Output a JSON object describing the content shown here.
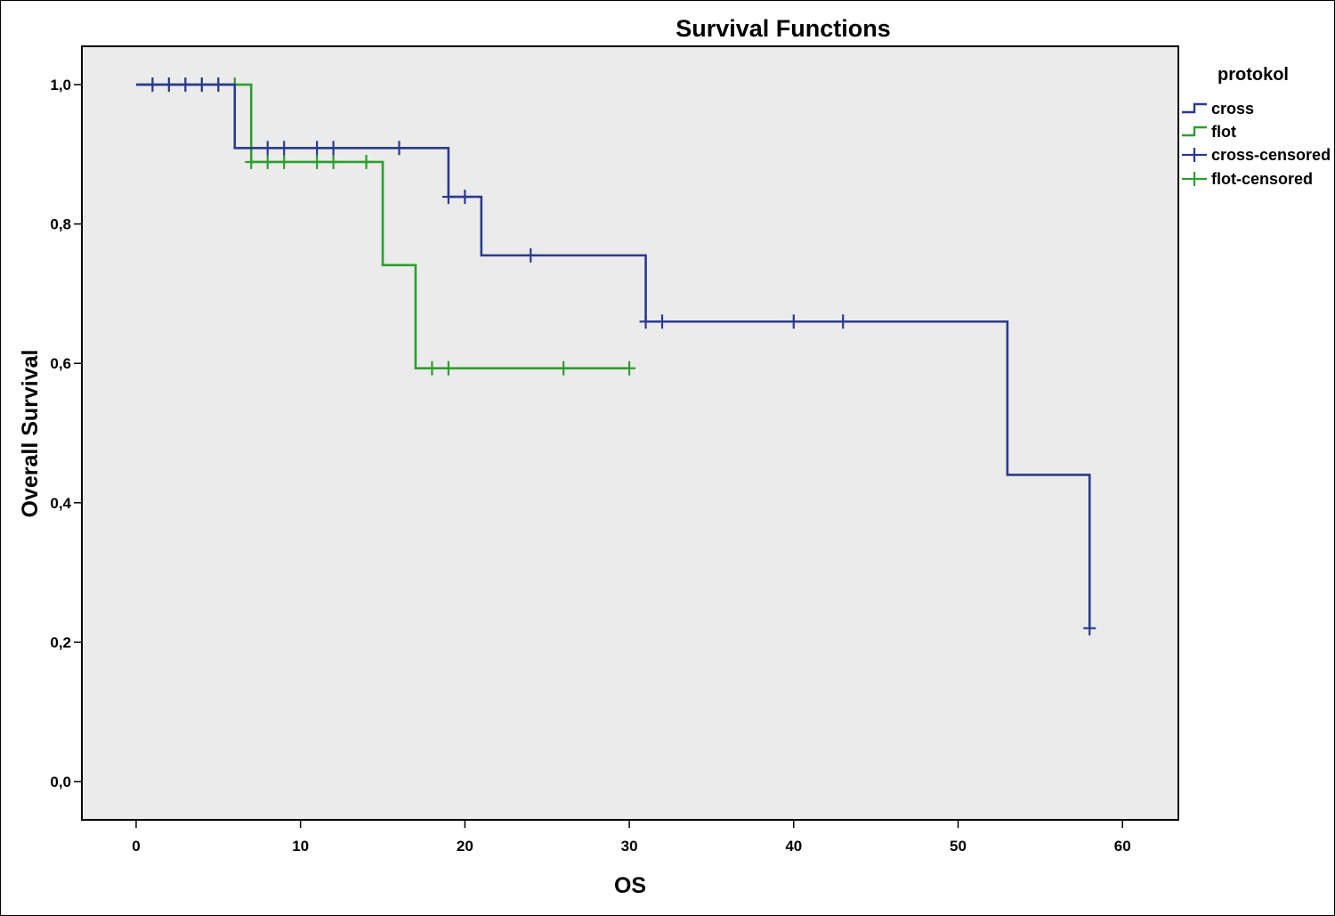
{
  "chart_data": {
    "type": "line",
    "subtype": "kaplan-meier-step",
    "title": "Survival Functions",
    "xlabel": "OS",
    "ylabel": "Overall Survival",
    "xlim": [
      -3.3,
      63.4
    ],
    "ylim": [
      -0.055,
      1.055
    ],
    "x_ticks": [
      0,
      10,
      20,
      30,
      40,
      50,
      60
    ],
    "x_tick_labels": [
      "0",
      "10",
      "20",
      "30",
      "40",
      "50",
      "60"
    ],
    "y_ticks": [
      0,
      0.2,
      0.4,
      0.6,
      0.8,
      1.0
    ],
    "y_tick_labels": [
      "0,0",
      "0,2",
      "0,4",
      "0,6",
      "0,8",
      "1,0"
    ],
    "grid": false,
    "plot_background": "#ebebeb",
    "legend": {
      "title": "protokol",
      "placement": "right",
      "entries": [
        "cross",
        "flot",
        "cross-censored",
        "flot-censored"
      ]
    },
    "series": [
      {
        "name": "cross",
        "color": "#2b3a8f",
        "steps": [
          [
            0,
            1.0
          ],
          [
            6,
            0.909
          ],
          [
            19,
            0.839
          ],
          [
            21,
            0.755
          ],
          [
            31,
            0.66
          ],
          [
            53,
            0.44
          ],
          [
            58,
            0.22
          ]
        ],
        "censored": [
          [
            1,
            1.0
          ],
          [
            2,
            1.0
          ],
          [
            3,
            1.0
          ],
          [
            4,
            1.0
          ],
          [
            5,
            1.0
          ],
          [
            8,
            0.909
          ],
          [
            9,
            0.909
          ],
          [
            11,
            0.909
          ],
          [
            12,
            0.909
          ],
          [
            16,
            0.909
          ],
          [
            19,
            0.839
          ],
          [
            20,
            0.839
          ],
          [
            24,
            0.755
          ],
          [
            31,
            0.66
          ],
          [
            32,
            0.66
          ],
          [
            40,
            0.66
          ],
          [
            43,
            0.66
          ],
          [
            58,
            0.22
          ]
        ]
      },
      {
        "name": "flot",
        "color": "#2e9e2e",
        "steps": [
          [
            0,
            1.0
          ],
          [
            7,
            0.889
          ],
          [
            15,
            0.741
          ],
          [
            17,
            0.593
          ],
          [
            30,
            0.593
          ]
        ],
        "censored": [
          [
            1,
            1.0
          ],
          [
            2,
            1.0
          ],
          [
            3,
            1.0
          ],
          [
            4,
            1.0
          ],
          [
            5,
            1.0
          ],
          [
            6,
            1.0
          ],
          [
            7,
            0.889
          ],
          [
            8,
            0.889
          ],
          [
            9,
            0.889
          ],
          [
            11,
            0.889
          ],
          [
            12,
            0.889
          ],
          [
            14,
            0.889
          ],
          [
            18,
            0.593
          ],
          [
            19,
            0.593
          ],
          [
            26,
            0.593
          ],
          [
            30,
            0.593
          ]
        ]
      }
    ]
  }
}
